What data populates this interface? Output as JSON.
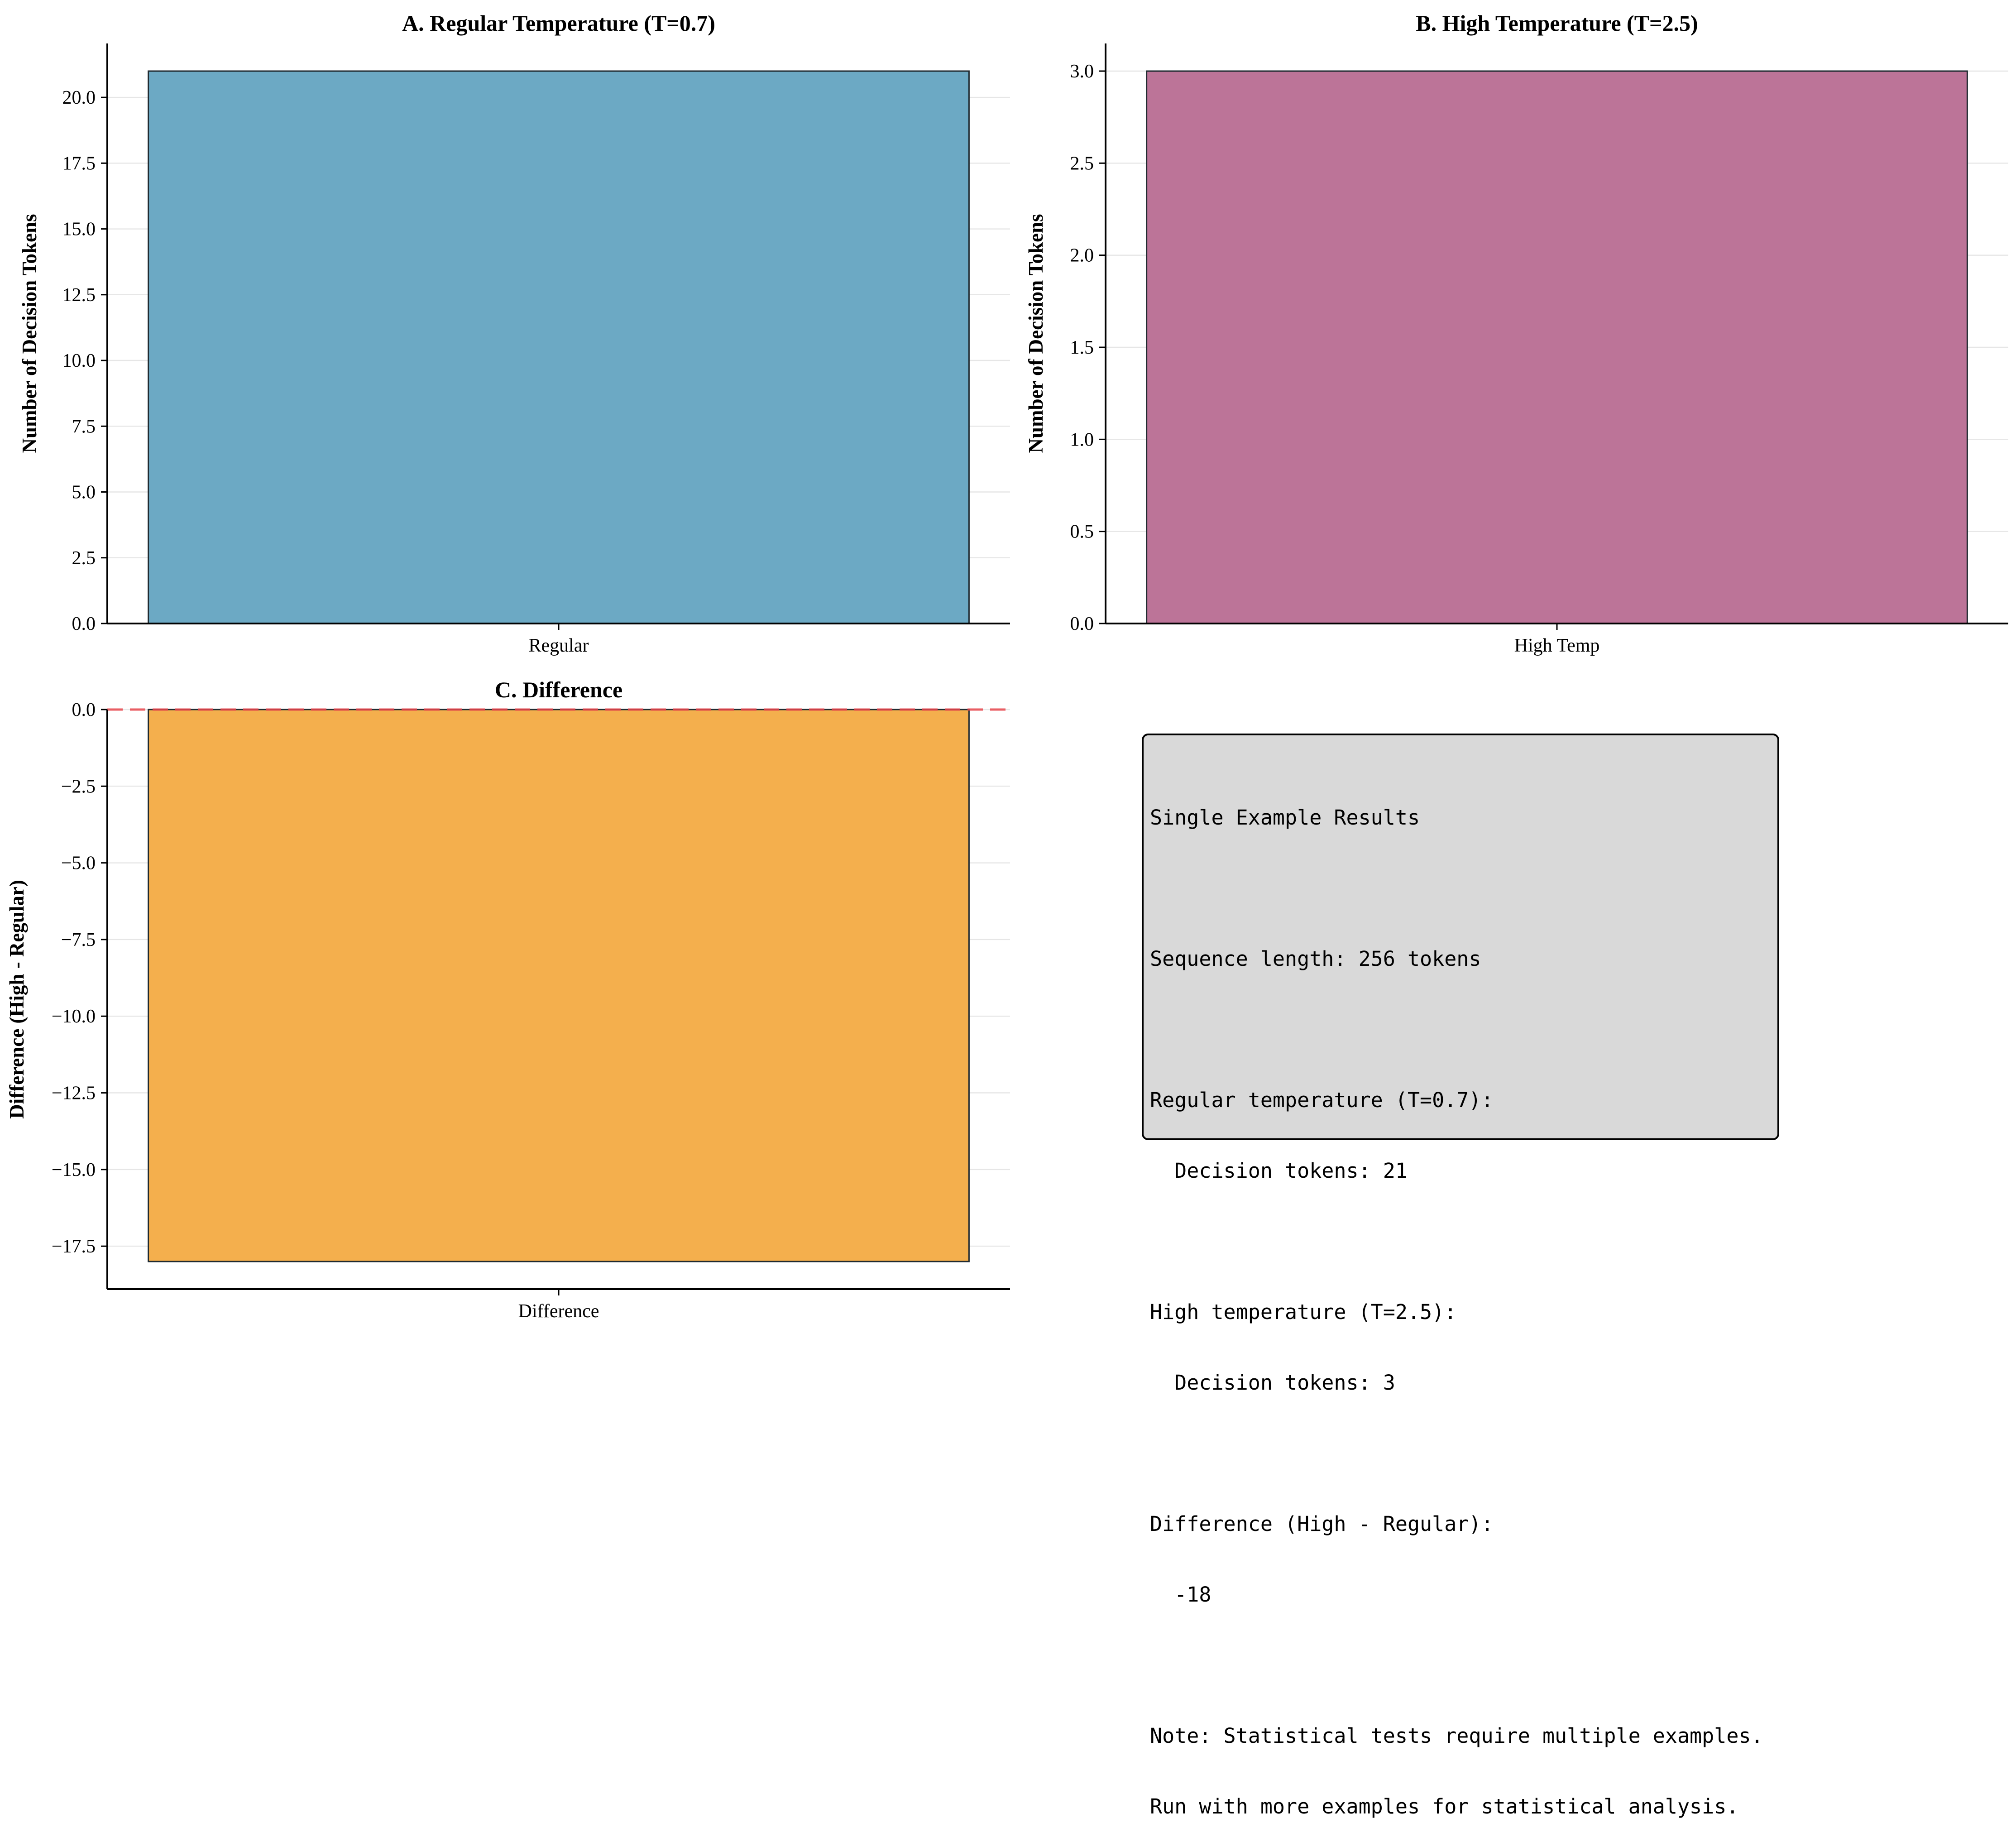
{
  "chart_data": [
    {
      "type": "bar",
      "title": "A. Regular Temperature (T=0.7)",
      "ylabel": "Number of Decision Tokens",
      "categories": [
        "Regular"
      ],
      "values": [
        21
      ],
      "ylim": [
        0,
        22.05
      ],
      "yticks": [
        "0.0",
        "2.5",
        "5.0",
        "7.5",
        "10.0",
        "12.5",
        "15.0",
        "17.5",
        "20.0"
      ],
      "ytick_values": [
        0,
        2.5,
        5,
        7.5,
        10,
        12.5,
        15,
        17.5,
        20
      ],
      "color": "#6ca9c4",
      "grid": true
    },
    {
      "type": "bar",
      "title": "B. High Temperature (T=2.5)",
      "ylabel": "Number of Decision Tokens",
      "categories": [
        "High Temp"
      ],
      "values": [
        3
      ],
      "ylim": [
        0,
        3.15
      ],
      "yticks": [
        "0.0",
        "0.5",
        "1.0",
        "1.5",
        "2.0",
        "2.5",
        "3.0"
      ],
      "ytick_values": [
        0,
        0.5,
        1,
        1.5,
        2,
        2.5,
        3
      ],
      "color": "#bc7498",
      "grid": true
    },
    {
      "type": "bar",
      "title": "C. Difference",
      "ylabel": "Difference (High - Regular)",
      "categories": [
        "Difference"
      ],
      "values": [
        -18
      ],
      "ylim": [
        -18.9,
        0
      ],
      "yticks": [
        "0.0",
        "−2.5",
        "−5.0",
        "−7.5",
        "−10.0",
        "−12.5",
        "−15.0",
        "−17.5"
      ],
      "ytick_values": [
        0,
        -2.5,
        -5,
        -7.5,
        -10,
        -12.5,
        -15,
        -17.5
      ],
      "color": "#f4af4d",
      "reference_line": {
        "y": 0,
        "style": "dashed",
        "color": "#e8474c"
      },
      "grid": true
    }
  ],
  "summary": {
    "lines": [
      "Single Example Results",
      "",
      "Sequence length: 256 tokens",
      "",
      "Regular temperature (T=0.7):",
      "  Decision tokens: 21",
      "",
      "High temperature (T=2.5):",
      "  Decision tokens: 3",
      "",
      "Difference (High - Regular):",
      "  -18",
      "",
      "Note: Statistical tests require multiple examples.",
      "Run with more examples for statistical analysis."
    ]
  }
}
